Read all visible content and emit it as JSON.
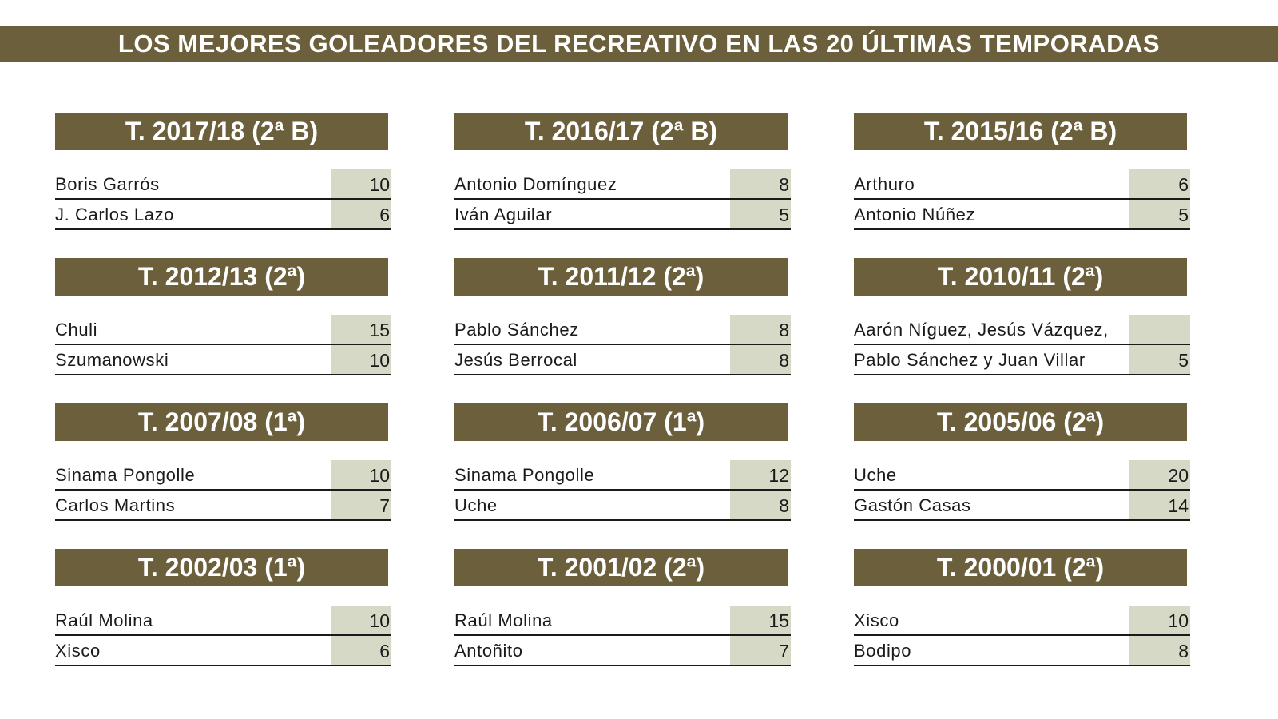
{
  "title": "LOS MEJORES GOLEADORES DEL RECREATIVO EN LAS 20 ÚLTIMAS TEMPORADAS",
  "colors": {
    "banner": "#6b5f3c",
    "goals_cell": "#d6d9c6"
  },
  "seasons": [
    {
      "label": "T. 2017/18 (2ª B)",
      "scorers": [
        {
          "name": "Boris Garrós",
          "goals": "10"
        },
        {
          "name": "J. Carlos Lazo",
          "goals": "6"
        }
      ]
    },
    {
      "label": "T. 2016/17 (2ª B)",
      "scorers": [
        {
          "name": "Antonio Domínguez",
          "goals": "8"
        },
        {
          "name": "Iván Aguilar",
          "goals": "5"
        }
      ]
    },
    {
      "label": "T. 2015/16 (2ª B)",
      "scorers": [
        {
          "name": "Arthuro",
          "goals": "6"
        },
        {
          "name": "Antonio Núñez",
          "goals": "5"
        }
      ]
    },
    {
      "label": "T. 2012/13 (2ª)",
      "scorers": [
        {
          "name": "Chuli",
          "goals": "15"
        },
        {
          "name": "Szumanowski",
          "goals": "10"
        }
      ]
    },
    {
      "label": "T. 2011/12 (2ª)",
      "scorers": [
        {
          "name": "Pablo Sánchez",
          "goals": "8"
        },
        {
          "name": "Jesús Berrocal",
          "goals": "8"
        }
      ]
    },
    {
      "label": "T. 2010/11 (2ª)",
      "scorers": [
        {
          "name": "Aarón Níguez, Jesús Vázquez,",
          "goals": ""
        },
        {
          "name": "Pablo Sánchez y Juan Villar",
          "goals": "5"
        }
      ]
    },
    {
      "label": "T. 2007/08 (1ª)",
      "scorers": [
        {
          "name": "Sinama Pongolle",
          "goals": "10"
        },
        {
          "name": "Carlos Martins",
          "goals": "7"
        }
      ]
    },
    {
      "label": "T. 2006/07 (1ª)",
      "scorers": [
        {
          "name": "Sinama Pongolle",
          "goals": "12"
        },
        {
          "name": "Uche",
          "goals": "8"
        }
      ]
    },
    {
      "label": "T. 2005/06 (2ª)",
      "scorers": [
        {
          "name": "Uche",
          "goals": "20"
        },
        {
          "name": "Gastón Casas",
          "goals": "14"
        }
      ]
    },
    {
      "label": "T. 2002/03 (1ª)",
      "scorers": [
        {
          "name": "Raúl Molina",
          "goals": "10"
        },
        {
          "name": "Xisco",
          "goals": "6"
        }
      ]
    },
    {
      "label": "T. 2001/02 (2ª)",
      "scorers": [
        {
          "name": "Raúl Molina",
          "goals": "15"
        },
        {
          "name": "Antoñito",
          "goals": "7"
        }
      ]
    },
    {
      "label": "T. 2000/01 (2ª)",
      "scorers": [
        {
          "name": "Xisco",
          "goals": "10"
        },
        {
          "name": "Bodipo",
          "goals": "8"
        }
      ]
    }
  ]
}
